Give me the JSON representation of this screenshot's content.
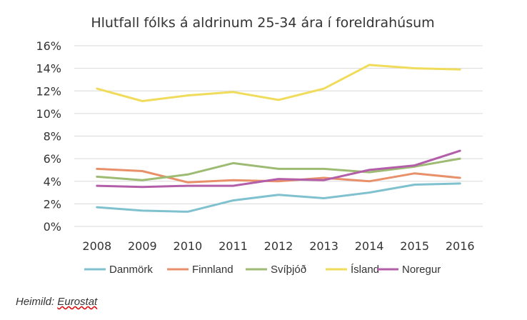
{
  "source": {
    "prefix": "Heimild:",
    "name": "Eurostat"
  },
  "chart_data": {
    "type": "line",
    "title": "Hlutfall fólks á aldrinum 25-34 ára í foreldrahúsum",
    "xlabel": "",
    "ylabel": "",
    "x": [
      "2008",
      "2009",
      "2010",
      "2011",
      "2012",
      "2013",
      "2014",
      "2015",
      "2016"
    ],
    "ylim": [
      0,
      16
    ],
    "yticks": [
      0,
      2,
      4,
      6,
      8,
      10,
      12,
      14,
      16
    ],
    "ytick_labels": [
      "0%",
      "2%",
      "4%",
      "6%",
      "8%",
      "10%",
      "12%",
      "14%",
      "16%"
    ],
    "grid": true,
    "legend_position": "bottom",
    "series": [
      {
        "name": "Danmörk",
        "color": "#7fc1cf",
        "values": [
          1.7,
          1.4,
          1.3,
          2.3,
          2.8,
          2.5,
          3.0,
          3.7,
          3.8
        ]
      },
      {
        "name": "Finnland",
        "color": "#e8906a",
        "values": [
          5.1,
          4.9,
          3.9,
          4.1,
          4.0,
          4.3,
          4.0,
          4.7,
          4.3
        ]
      },
      {
        "name": "Svíþjóð",
        "color": "#9dbb72",
        "values": [
          4.4,
          4.1,
          4.6,
          5.6,
          5.1,
          5.1,
          4.8,
          5.3,
          6.0
        ]
      },
      {
        "name": "Ísland",
        "color": "#f0dc5a",
        "values": [
          12.2,
          11.1,
          11.6,
          11.9,
          11.2,
          12.2,
          14.3,
          14.0,
          13.9
        ]
      },
      {
        "name": "Noregur",
        "color": "#b25ea8",
        "values": [
          3.6,
          3.5,
          3.6,
          3.6,
          4.2,
          4.1,
          5.0,
          5.4,
          6.7
        ]
      }
    ]
  }
}
